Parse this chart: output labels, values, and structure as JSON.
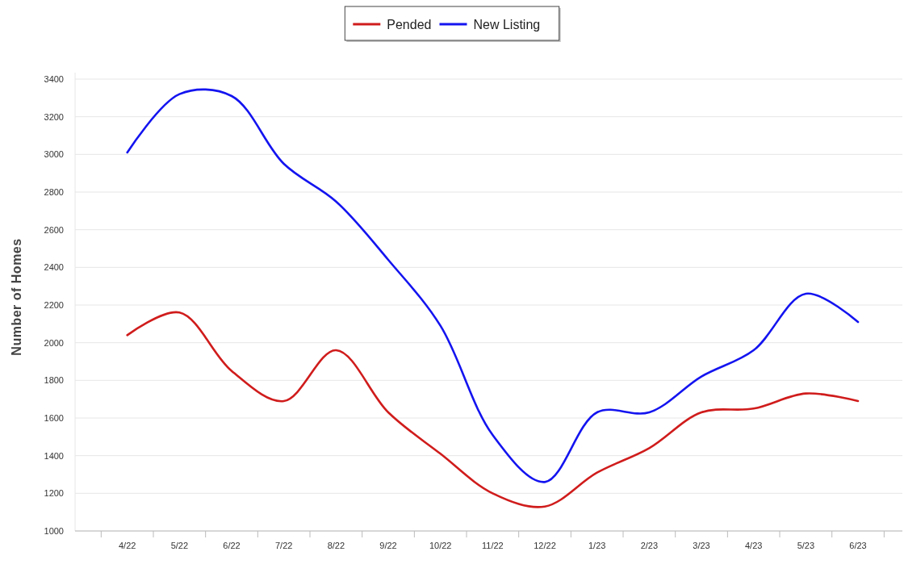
{
  "chart_data": {
    "type": "line",
    "ylabel": "Number of Homes",
    "categories": [
      "4/22",
      "5/22",
      "6/22",
      "7/22",
      "8/22",
      "9/22",
      "10/22",
      "11/22",
      "12/22",
      "1/23",
      "2/23",
      "3/23",
      "4/23",
      "5/23",
      "6/23"
    ],
    "series": [
      {
        "name": "Pended",
        "color": "#d01c1c",
        "values": [
          2040,
          2160,
          1850,
          1690,
          1960,
          1630,
          1410,
          1200,
          1130,
          1310,
          1440,
          1630,
          1650,
          1730,
          1690
        ]
      },
      {
        "name": "New Listing",
        "color": "#1414f0",
        "values": [
          3010,
          3320,
          3310,
          2950,
          2750,
          2440,
          2090,
          1510,
          1260,
          1630,
          1630,
          1820,
          1960,
          2260,
          2110
        ]
      }
    ],
    "ylim": [
      1000,
      3400
    ],
    "yticks": [
      1000,
      1200,
      1400,
      1600,
      1800,
      2000,
      2200,
      2400,
      2600,
      2800,
      3000,
      3200,
      3400
    ],
    "grid": "y",
    "legend": "top",
    "marker": "none",
    "line_style": "solid"
  }
}
